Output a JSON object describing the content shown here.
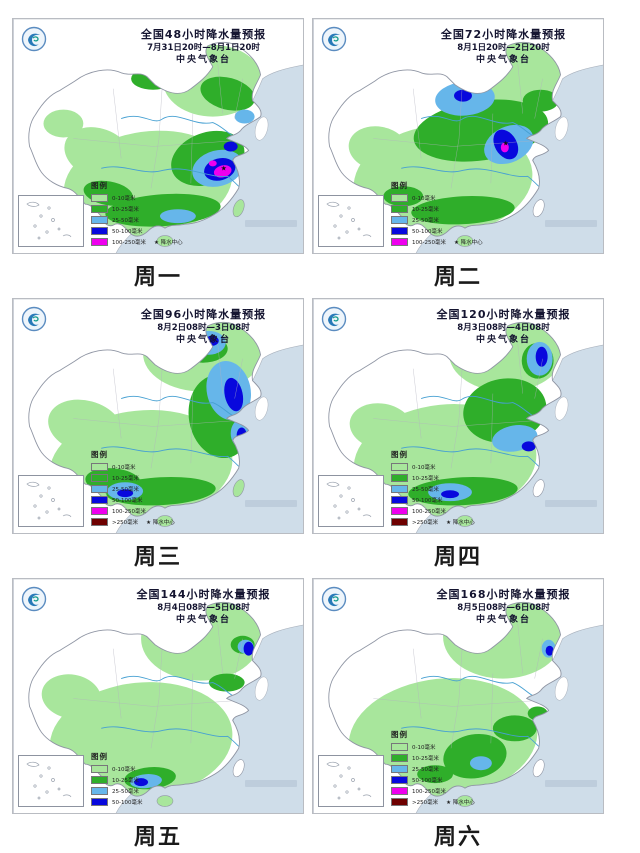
{
  "legend": {
    "header": "图例",
    "center_note": "★ 降水中心",
    "entries": [
      {
        "label": "0-10毫米",
        "color": "#a8e69c"
      },
      {
        "label": "10-25毫米",
        "color": "#2fae2a"
      },
      {
        "label": "25-50毫米",
        "color": "#66b6ea"
      },
      {
        "label": "50-100毫米",
        "color": "#0808dd"
      },
      {
        "label": "100-250毫米",
        "color": "#ee00ee"
      },
      {
        "label": ">250毫米",
        "color": "#6e0000"
      }
    ]
  },
  "panels": [
    {
      "title": "全国48小时降水量预报",
      "date_range": "7月31日20时—8月1日20时",
      "agency": "中央气象台",
      "day": "周一",
      "levels": 5
    },
    {
      "title": "全国72小时降水量预报",
      "date_range": "8月1日20时—2日20时",
      "agency": "中央气象台",
      "day": "周二",
      "levels": 5
    },
    {
      "title": "全国96小时降水量预报",
      "date_range": "8月2日08时—3日08时",
      "agency": "中央气象台",
      "day": "周三",
      "levels": 6
    },
    {
      "title": "全国120小时降水量预报",
      "date_range": "8月3日08时—4日08时",
      "agency": "中央气象台",
      "day": "周四",
      "levels": 6
    },
    {
      "title": "全国144小时降水量预报",
      "date_range": "8月4日08时—5日08时",
      "agency": "中央气象台",
      "day": "周五",
      "levels": 4
    },
    {
      "title": "全国168小时降水量预报",
      "date_range": "8月5日08时—6日08时",
      "agency": "中央气象台",
      "day": "周六",
      "levels": 6
    }
  ],
  "colors": {
    "sea": "#cfdde9",
    "land": "#ffffff",
    "border": "#9096a4",
    "river": "#46a0d2",
    "title_text": "#141430"
  }
}
